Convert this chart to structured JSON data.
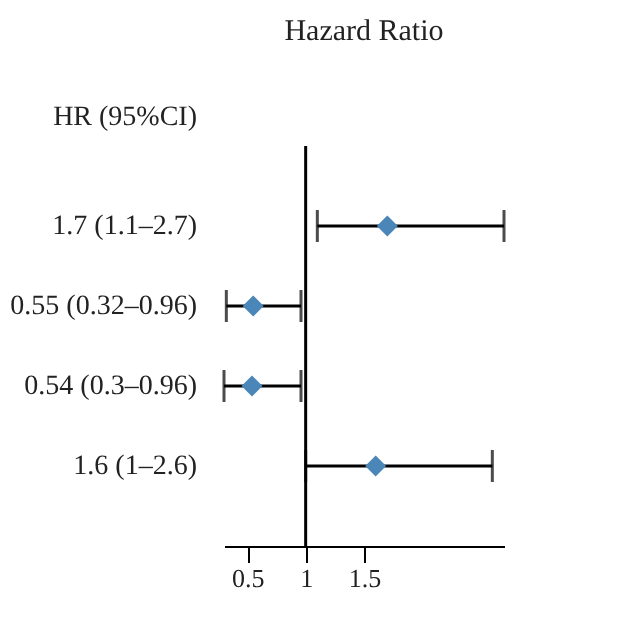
{
  "chart_data": {
    "type": "scatter",
    "title": "Hazard Ratio",
    "ylabel": "HR (95%CI)",
    "categories": [
      "1.7 (1.1–2.7)",
      "0.55 (0.32–0.96)",
      "0.54 (0.3–0.96)",
      "1.6 (1–2.6)"
    ],
    "orientation": "horizontal",
    "values": [
      1.7,
      0.55,
      0.54,
      1.6
    ],
    "errors": [
      [
        1.1,
        2.7
      ],
      [
        0.32,
        0.96
      ],
      [
        0.3,
        0.96
      ],
      [
        1,
        2.6
      ]
    ],
    "color": "#4a86b8",
    "marker": "diamond",
    "xlim": [
      0.3,
      2.7
    ],
    "xticks": [
      0.5,
      1,
      1.5
    ],
    "ref_lines": [
      {
        "axis": "x",
        "value": 1
      }
    ]
  }
}
